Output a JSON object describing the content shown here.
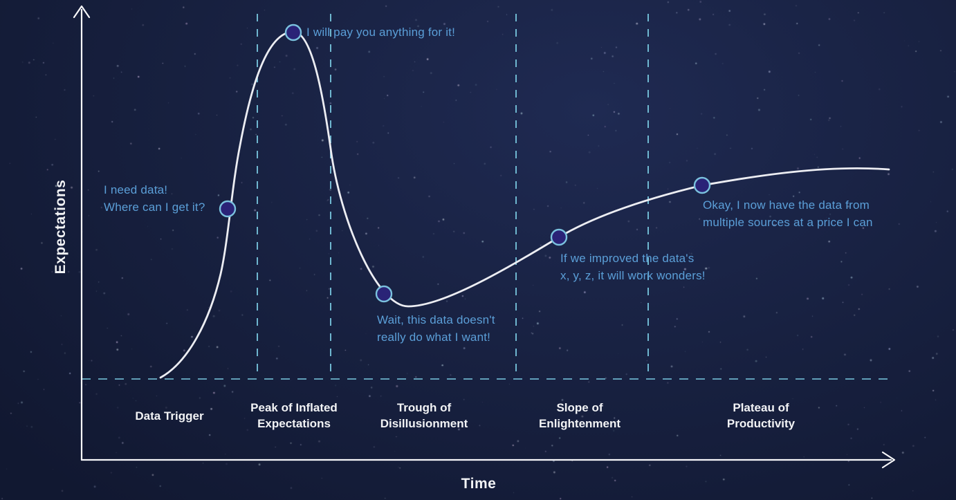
{
  "colors": {
    "background_center": "#1f2a52",
    "background_edge": "#111831",
    "curve": "#ECEDF2",
    "axis": "#F8F8FA",
    "dashed_line": "#74C0D8",
    "marker_fill": "#2A2377",
    "marker_stroke": "#7AC1DE",
    "annotation_text": "#5B9FD8",
    "label_text": "#F2F3F5"
  },
  "chart_data": {
    "type": "line",
    "title": "",
    "xlabel": "Time",
    "ylabel": "Expectations",
    "grid": false,
    "legend": false,
    "curve_shape": "hype-cycle",
    "axis_range_note": "no numeric ticks; qualitative axes with arrowheads",
    "phases": [
      {
        "lines": [
          "Data Trigger"
        ]
      },
      {
        "lines": [
          "Peak of Inflated",
          "Expectations"
        ]
      },
      {
        "lines": [
          "Trough of",
          "Disillusionment"
        ]
      },
      {
        "lines": [
          "Slope of",
          "Enlightenment"
        ]
      },
      {
        "lines": [
          "Plateau of",
          "Productivity"
        ]
      }
    ],
    "annotations": [
      {
        "phase": "Data Trigger",
        "expectations_level": 0.49,
        "lines": [
          "I need data!",
          "Where can I get it?"
        ]
      },
      {
        "phase": "Peak of Inflated Expectations",
        "expectations_level": 1.0,
        "lines": [
          "I will pay you anything for it!"
        ]
      },
      {
        "phase": "Trough of Disillusionment",
        "expectations_level": 0.24,
        "lines": [
          "Wait, this data doesn't",
          "really do what I want!"
        ]
      },
      {
        "phase": "Slope of Enlightenment",
        "expectations_level": 0.41,
        "lines": [
          "If we improved the data's",
          "x, y, z, it will work wonders!"
        ]
      },
      {
        "phase": "Plateau of Productivity",
        "expectations_level": 0.56,
        "lines": [
          "Okay, I now have the data from",
          "multiple sources at a price I can"
        ]
      }
    ]
  }
}
